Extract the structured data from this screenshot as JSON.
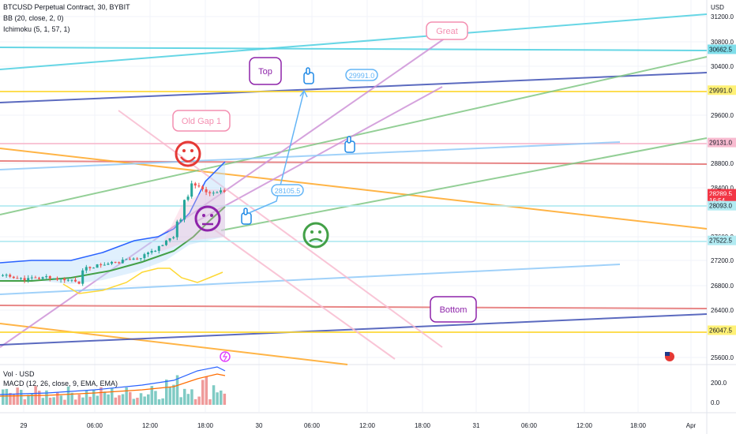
{
  "header": {
    "symbol_line": "BTCUSD Perpetual Contract, 30, BYBIT",
    "bb_line": "BB (20, close, 2, 0)",
    "ichimoku_line": "Ichimoku (5, 1, 57, 1)"
  },
  "sub": {
    "vol_label": "Vol · USD",
    "macd_label": "MACD (12, 26, close, 9, EMA, EMA)"
  },
  "chart_data": {
    "type": "candlestick",
    "price_axis": {
      "currency": "USD",
      "ticks": [
        "31200.0",
        "30800.0",
        "30400.0",
        "29600.0",
        "28800.0",
        "28400.0",
        "27600.0",
        "27200.0",
        "26800.0",
        "26400.0",
        "25600.0"
      ],
      "range": [
        25500,
        31300
      ]
    },
    "price_labels": [
      {
        "text": "30662.5",
        "value": 30662.5,
        "color": "#80deea"
      },
      {
        "text": "29991.0",
        "value": 29991,
        "color": "#fff176"
      },
      {
        "text": "29131.0",
        "value": 29131,
        "color": "#f8bbd0"
      },
      {
        "text": "28289.5",
        "value": 28289.5,
        "color": "#f23645"
      },
      {
        "text": "16:54",
        "value": 28180,
        "color": "#f23645"
      },
      {
        "text": "28093.0",
        "value": 28093,
        "color": "#b2ebf2"
      },
      {
        "text": "27522.5",
        "value": 27522.5,
        "color": "#b2ebf2"
      },
      {
        "text": "26047.5",
        "value": 26047.5,
        "color": "#fff176"
      }
    ],
    "time_axis": [
      "29",
      "06:00",
      "12:00",
      "18:00",
      "30",
      "06:00",
      "12:00",
      "18:00",
      "31",
      "06:00",
      "12:00",
      "18:00",
      "Apr"
    ],
    "annotations": [
      "Great",
      "Top",
      "Old Gap 1",
      "Bottom",
      "29991.0",
      "28105.5"
    ],
    "macd_axis": [
      "200.0",
      "0.0"
    ],
    "colors": {
      "up": "#26a69a",
      "down": "#ef5350",
      "bb": "#2962ff",
      "grid": "#f0f3fa"
    }
  }
}
